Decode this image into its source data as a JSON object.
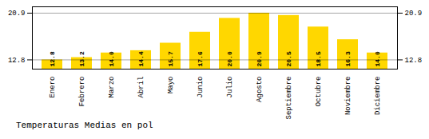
{
  "chart_data": {
    "type": "bar",
    "title": "Temperaturas Medias en pol",
    "categories": [
      "Enero",
      "Febrero",
      "Marzo",
      "Abril",
      "Mayo",
      "Junio",
      "Julio",
      "Agosto",
      "Septiembre",
      "Octubre",
      "Noviembre",
      "Diciembre"
    ],
    "values": [
      12.8,
      13.2,
      14.0,
      14.4,
      15.7,
      17.6,
      20.0,
      20.9,
      20.5,
      18.5,
      16.3,
      14.0
    ],
    "value_labels": [
      "12.8",
      "13.2",
      "14.0",
      "14.4",
      "15.7",
      "17.6",
      "20.0",
      "20.9",
      "20.5",
      "18.5",
      "16.3",
      "14.0"
    ],
    "color": "#FFD700",
    "ylim": [
      11.2,
      22.0
    ],
    "yticks": [
      12.8,
      20.9
    ],
    "grid": true,
    "data_labels": true
  }
}
